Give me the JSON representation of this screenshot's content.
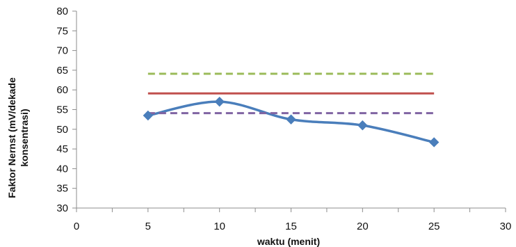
{
  "chart_data": {
    "type": "line",
    "title": "",
    "xlabel": "waktu (menit)",
    "ylabel_lines": [
      "Faktor Nernst (mV/dekade",
      "konsentrasi)"
    ],
    "xlim": [
      0,
      30
    ],
    "ylim": [
      30,
      80
    ],
    "x_ticks": [
      0,
      5,
      10,
      15,
      20,
      25,
      30
    ],
    "y_ticks": [
      30,
      35,
      40,
      45,
      50,
      55,
      60,
      65,
      70,
      75,
      80
    ],
    "grid": false,
    "legend": "none",
    "series": [
      {
        "style": "smooth-line-diamond-markers",
        "color": "#4a7ebb",
        "x": [
          5,
          10,
          15,
          20,
          25
        ],
        "y": [
          53.5,
          57.0,
          52.5,
          51.0,
          46.7
        ]
      },
      {
        "style": "dashed",
        "color": "#9bbb59",
        "x": [
          5,
          25
        ],
        "y": [
          64.1,
          64.1
        ]
      },
      {
        "style": "solid",
        "color": "#c0504d",
        "x": [
          5,
          25
        ],
        "y": [
          59.1,
          59.1
        ]
      },
      {
        "style": "dashed",
        "color": "#8064a2",
        "x": [
          5,
          25
        ],
        "y": [
          54.1,
          54.1
        ]
      }
    ]
  }
}
